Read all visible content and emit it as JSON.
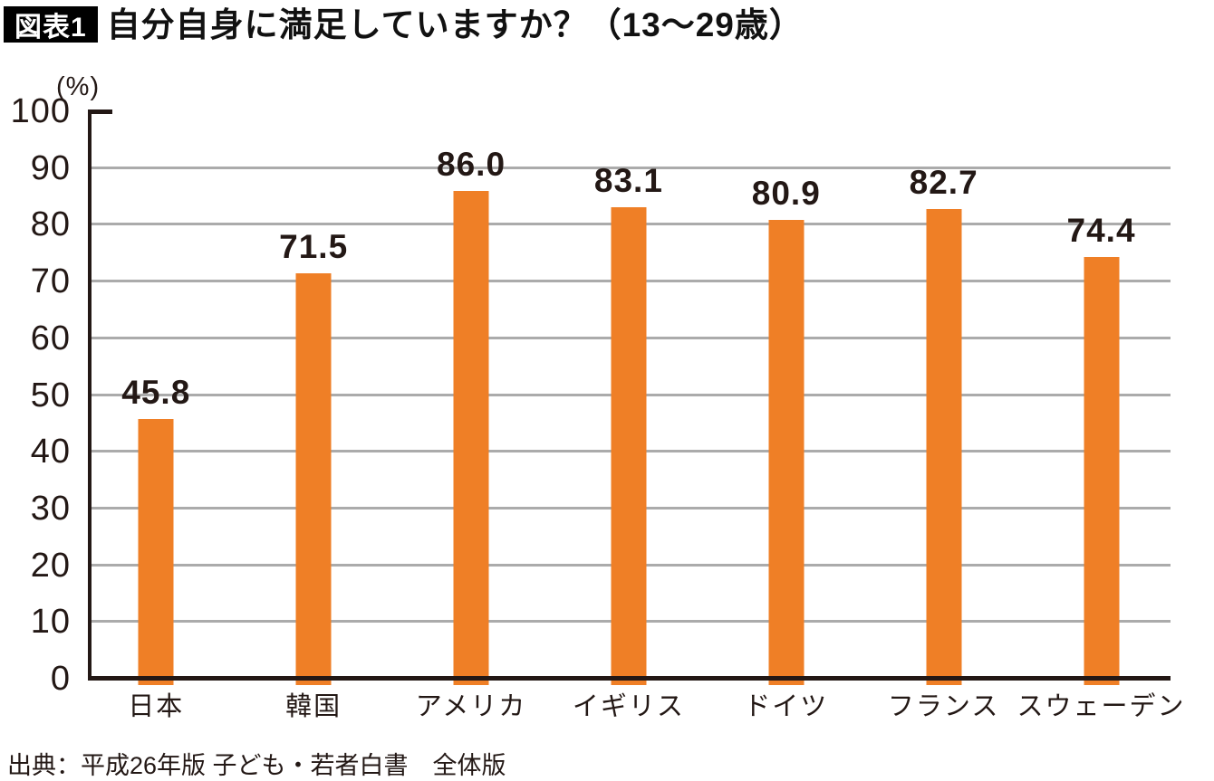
{
  "header": {
    "badge": "図表1",
    "title": "自分自身に満足していますか？（13〜29歳）"
  },
  "chart_data": {
    "type": "bar",
    "title": "自分自身に満足していますか？（13〜29歳）",
    "unit_label": "(%)",
    "categories": [
      "日本",
      "韓国",
      "アメリカ",
      "イギリス",
      "ドイツ",
      "フランス",
      "スウェーデン"
    ],
    "values": [
      45.8,
      71.5,
      86.0,
      83.1,
      80.9,
      82.7,
      74.4
    ],
    "value_labels": [
      "45.8",
      "71.5",
      "86.0",
      "83.1",
      "80.9",
      "82.7",
      "74.4"
    ],
    "ylim": [
      0,
      100
    ],
    "yticks": [
      0,
      10,
      20,
      30,
      40,
      50,
      60,
      70,
      80,
      90,
      100
    ],
    "grid": "horizontal",
    "legend": "none",
    "bar_color": "#EF7F26",
    "gridline_color": "#ABABAB",
    "axis_color": "#231815"
  },
  "source": "出典：平成26年版 子ども・若者白書　全体版"
}
